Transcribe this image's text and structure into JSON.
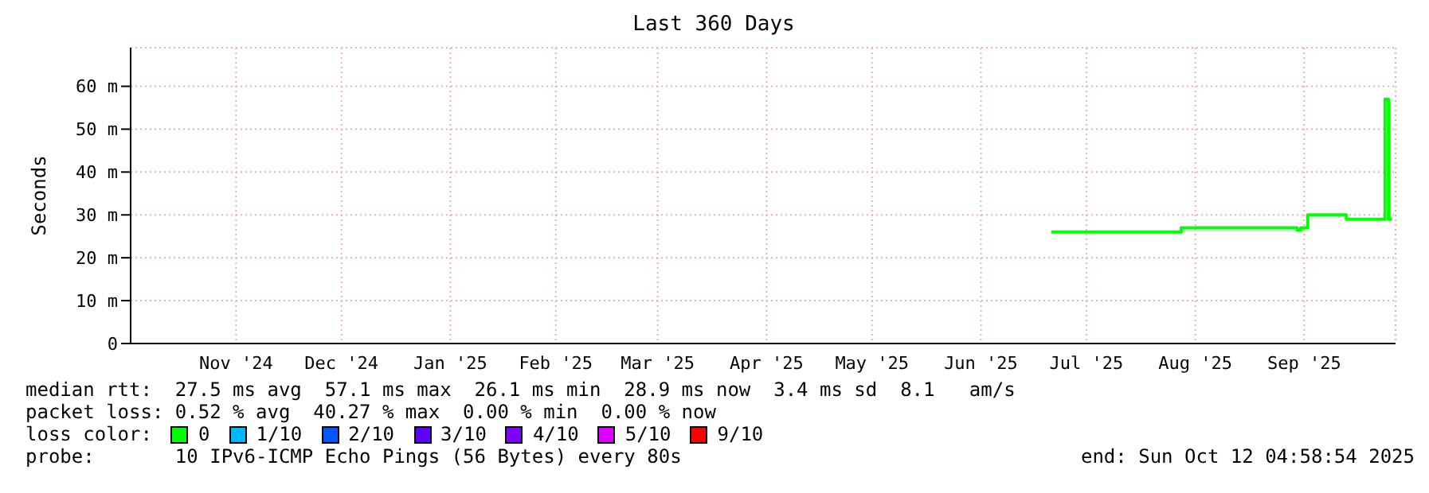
{
  "chart_data": {
    "type": "step",
    "title": "Last 360 Days",
    "ylabel": "Seconds",
    "legend_title": "loss color:",
    "legend": "bottom",
    "grid": true,
    "marker": "none",
    "x": [
      "2025-07-06",
      "2025-07-20",
      "2025-08-12",
      "2025-09-14",
      "2025-09-15",
      "2025-09-17",
      "2025-09-28",
      "2025-10-09",
      "2025-10-10",
      "2025-10-11"
    ],
    "series": [
      {
        "name": "0",
        "color": "#00ff00",
        "values": [
          26,
          26,
          27,
          26.5,
          27,
          30,
          29,
          57,
          29,
          29
        ]
      },
      {
        "name": "1/10",
        "color": "#00b8ff",
        "values": [
          null,
          null,
          null,
          null,
          null,
          null,
          null,
          null,
          null,
          null
        ]
      },
      {
        "name": "2/10",
        "color": "#0059ff",
        "values": [
          null,
          null,
          null,
          null,
          null,
          null,
          null,
          null,
          null,
          null
        ]
      },
      {
        "name": "3/10",
        "color": "#5e00ff",
        "values": [
          null,
          null,
          null,
          null,
          null,
          null,
          null,
          null,
          null,
          null
        ]
      },
      {
        "name": "4/10",
        "color": "#7e00ff",
        "values": [
          null,
          null,
          null,
          null,
          null,
          null,
          null,
          null,
          null,
          null
        ]
      },
      {
        "name": "5/10",
        "color": "#dd00ff",
        "values": [
          null,
          null,
          null,
          null,
          null,
          null,
          null,
          null,
          null,
          null
        ]
      },
      {
        "name": "9/10",
        "color": "#ff0000",
        "values": [
          null,
          null,
          null,
          null,
          null,
          null,
          null,
          null,
          null,
          null
        ]
      }
    ],
    "xlim": [
      "2024-10-17",
      "2025-10-12"
    ],
    "xticks": [
      {
        "value": "2024-11-16",
        "label": "Nov '24"
      },
      {
        "value": "2024-12-16",
        "label": "Dec '24"
      },
      {
        "value": "2025-01-16",
        "label": "Jan '25"
      },
      {
        "value": "2025-02-15",
        "label": "Feb '25"
      },
      {
        "value": "2025-03-16",
        "label": "Mar '25"
      },
      {
        "value": "2025-04-16",
        "label": "Apr '25"
      },
      {
        "value": "2025-05-16",
        "label": "May '25"
      },
      {
        "value": "2025-06-16",
        "label": "Jun '25"
      },
      {
        "value": "2025-07-16",
        "label": "Jul '25"
      },
      {
        "value": "2025-08-16",
        "label": "Aug '25"
      },
      {
        "value": "2025-09-16",
        "label": "Sep '25"
      }
    ],
    "ylim": [
      0,
      69
    ],
    "yticks": [
      0,
      {
        "value": 10,
        "label": "10 m"
      },
      {
        "value": 20,
        "label": "20 m"
      },
      {
        "value": 30,
        "label": "30 m"
      },
      {
        "value": 40,
        "label": "40 m"
      },
      {
        "value": 50,
        "label": "50 m"
      },
      {
        "value": 60,
        "label": "60 m"
      }
    ],
    "annotations": [
      "median rtt:  27.5 ms avg  57.1 ms max  26.1 ms min  28.9 ms now  3.4 ms sd  8.1   am/s",
      "packet loss: 0.52 % avg  40.27 % max  0.00 % min  0.00 % now",
      "probe:       10 IPv6-ICMP Echo Pings (56 Bytes) every 80s",
      "end: Sun Oct 12 04:58:54 2025"
    ]
  }
}
